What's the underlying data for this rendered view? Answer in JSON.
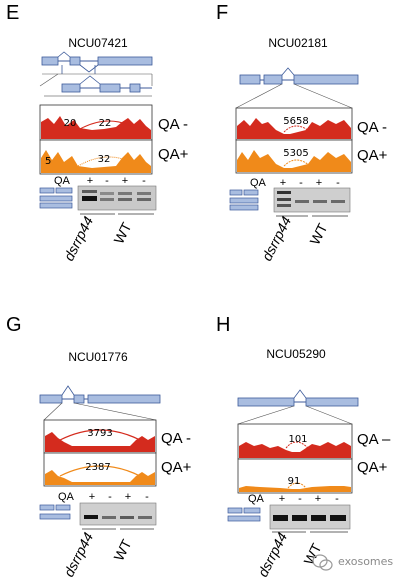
{
  "panels": {
    "E": {
      "letter": "E",
      "gene": "NCU07421",
      "counts": [
        "20",
        "22",
        "5",
        "32"
      ],
      "conditions": [
        "QA -",
        "QA+"
      ],
      "gel": {
        "qa": "QA",
        "marks": [
          "+",
          "-",
          "+",
          "-"
        ],
        "strain1": "dsrrp44",
        "strain2": "WT"
      }
    },
    "F": {
      "letter": "F",
      "gene": "NCU02181",
      "counts": [
        "5658",
        "5305"
      ],
      "conditions": [
        "QA -",
        "QA+"
      ],
      "gel": {
        "qa": "QA",
        "marks": [
          "+",
          "-",
          "+",
          "-"
        ],
        "strain1": "dsrrp44",
        "strain2": "WT"
      }
    },
    "G": {
      "letter": "G",
      "gene": "NCU01776",
      "counts": [
        "3793",
        "2387"
      ],
      "conditions": [
        "QA -",
        "QA+"
      ],
      "gel": {
        "qa": "QA",
        "marks": [
          "+",
          "-",
          "+",
          "-"
        ],
        "strain1": "dsrrp44",
        "strain2": "WT"
      }
    },
    "H": {
      "letter": "H",
      "gene": "NCU05290",
      "counts": [
        "101",
        "91"
      ],
      "conditions": [
        "QA –",
        "QA+"
      ],
      "gel": {
        "qa": "QA",
        "marks": [
          "+",
          "-",
          "+",
          "-"
        ],
        "strain1": "dsrrp44",
        "strain2": "WT"
      }
    }
  },
  "watermark": "exosomes",
  "colors": {
    "qa_minus": "#d42b1e",
    "qa_plus": "#f08a1a",
    "exon": "#a9bde0",
    "exon_stroke": "#3c5a9a"
  }
}
